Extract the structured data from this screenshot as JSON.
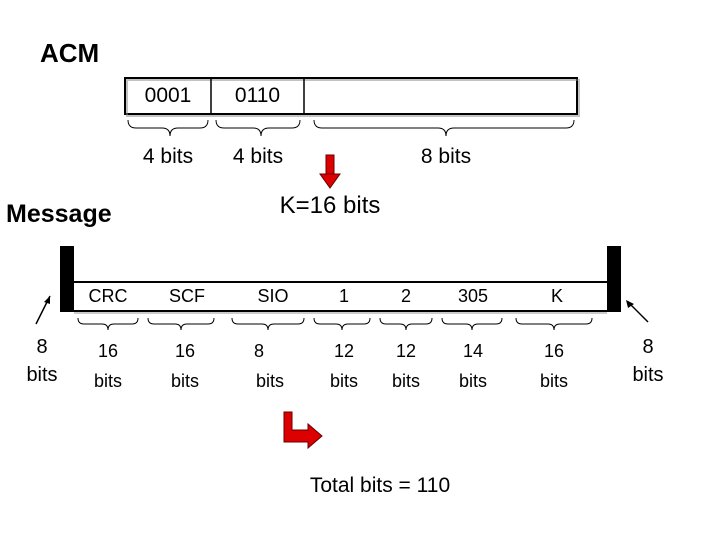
{
  "acm": {
    "title": "ACM",
    "fields": [
      {
        "value": "0001",
        "bits": "4 bits"
      },
      {
        "value": "0110",
        "bits": "4 bits"
      },
      {
        "value": "",
        "bits": "8 bits"
      }
    ]
  },
  "message": {
    "title": "Message",
    "k_label": "K=16 bits",
    "flag_bits": {
      "count": "8",
      "unit": "bits"
    },
    "fields": [
      {
        "name": "CRC",
        "bits": "16",
        "unit": "bits"
      },
      {
        "name": "SCF",
        "bits": "16",
        "unit": "bits"
      },
      {
        "name": "SIO",
        "bits": "8",
        "unit": "bits"
      },
      {
        "name": "1",
        "bits": "12",
        "unit": "bits"
      },
      {
        "name": "2",
        "bits": "12",
        "unit": "bits"
      },
      {
        "name": "305",
        "bits": "14",
        "unit": "bits"
      },
      {
        "name": "K",
        "bits": "16",
        "unit": "bits"
      }
    ]
  },
  "total": "Total bits  =  110",
  "colors": {
    "arrow": "#dd0000",
    "flag": "#000000"
  }
}
